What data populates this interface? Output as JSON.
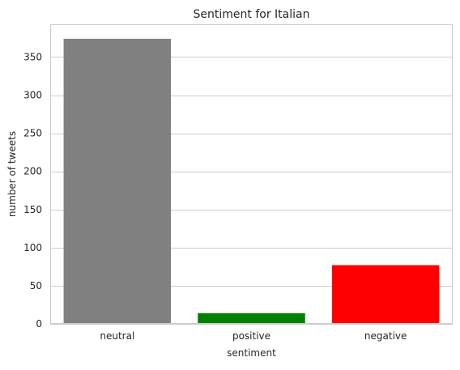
{
  "chart_data": {
    "type": "bar",
    "title": "Sentiment for Italian",
    "xlabel": "sentiment",
    "ylabel": "number of tweets",
    "categories": [
      "neutral",
      "positive",
      "negative"
    ],
    "values": [
      374,
      14,
      77
    ],
    "bar_colors": [
      "#808080",
      "#008000",
      "#ff0000"
    ],
    "ylim": [
      0,
      393
    ],
    "yticks": [
      0,
      50,
      100,
      150,
      200,
      250,
      300,
      350
    ],
    "grid": "horizontal",
    "legend": "none"
  }
}
